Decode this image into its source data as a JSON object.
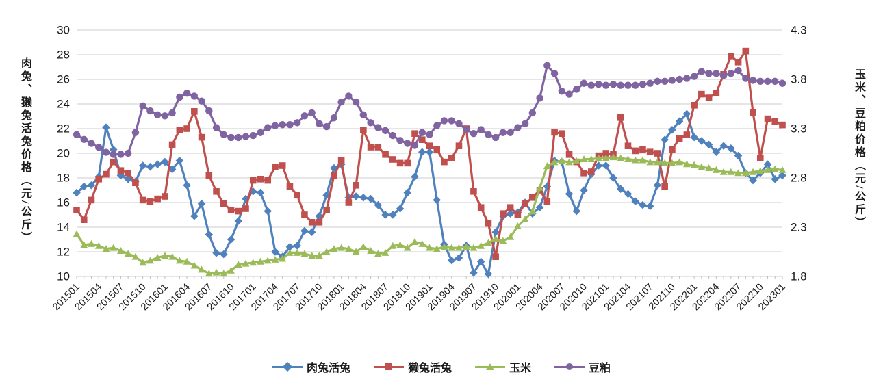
{
  "left_axis": {
    "title": "肉兔、獭兔活兔价格（元/公斤）",
    "min": 10,
    "max": 30,
    "step": 2,
    "tick_labels": [
      "10",
      "12",
      "14",
      "16",
      "18",
      "20",
      "22",
      "24",
      "26",
      "28",
      "30"
    ]
  },
  "right_axis": {
    "title": "玉米、豆粕价格（元/公斤）",
    "min": 1.8,
    "max": 4.3,
    "step": 0.5,
    "tick_labels": [
      "1.8",
      "2.3",
      "2.8",
      "3.3",
      "3.8",
      "4.3"
    ]
  },
  "colors": {
    "rabbit_meat": "#4F81BD",
    "rex_rabbit": "#C0504D",
    "corn": "#9BBB59",
    "soybean_meal": "#8064A2",
    "gridline": "#D6D6D6",
    "axis_line": "#BFBFBF",
    "text": "#1A1A1A"
  },
  "chart_data": {
    "type": "line",
    "title": "",
    "grid": true,
    "legend_position": "bottom",
    "x_tick_every": 3,
    "x": [
      "201501",
      "201502",
      "201503",
      "201504",
      "201505",
      "201506",
      "201507",
      "201508",
      "201509",
      "201510",
      "201511",
      "201512",
      "201601",
      "201602",
      "201603",
      "201604",
      "201605",
      "201606",
      "201607",
      "201608",
      "201609",
      "201610",
      "201611",
      "201612",
      "201701",
      "201702",
      "201703",
      "201704",
      "201705",
      "201706",
      "201707",
      "201708",
      "201709",
      "201710",
      "201711",
      "201712",
      "201801",
      "201802",
      "201803",
      "201804",
      "201805",
      "201806",
      "201807",
      "201808",
      "201809",
      "201810",
      "201811",
      "201812",
      "201901",
      "201902",
      "201903",
      "201904",
      "201905",
      "201906",
      "201907",
      "201908",
      "201909",
      "201910",
      "201911",
      "201912",
      "202001",
      "202002",
      "202003",
      "202004",
      "202005",
      "202006",
      "202007",
      "202008",
      "202009",
      "202010",
      "202011",
      "202012",
      "202101",
      "202102",
      "202103",
      "202104",
      "202105",
      "202106",
      "202107",
      "202108",
      "202109",
      "202110",
      "202111",
      "202112",
      "202201",
      "202202",
      "202203",
      "202204",
      "202205",
      "202206",
      "202207",
      "202208",
      "202209",
      "202210",
      "202211",
      "202212",
      "202301"
    ],
    "series": [
      {
        "name": "肉兔活兔",
        "axis": "left",
        "marker": "diamond",
        "color": "#4F81BD",
        "values": [
          16.8,
          17.3,
          17.4,
          18.1,
          22.1,
          20.3,
          18.2,
          17.9,
          17.7,
          19.0,
          18.9,
          19.1,
          19.3,
          18.7,
          19.4,
          17.4,
          14.9,
          15.9,
          13.4,
          11.9,
          11.8,
          13.0,
          14.5,
          16.3,
          16.9,
          16.8,
          15.3,
          12.0,
          11.6,
          12.4,
          12.5,
          13.7,
          13.6,
          14.9,
          16.6,
          18.8,
          19.1,
          16.4,
          16.5,
          16.4,
          16.3,
          15.8,
          15.0,
          15.0,
          15.5,
          16.8,
          18.1,
          20.1,
          20.1,
          16.2,
          12.6,
          11.3,
          11.5,
          12.5,
          10.3,
          11.2,
          10.2,
          13.6,
          14.9,
          15.1,
          15.2,
          16.0,
          15.1,
          15.6,
          17.3,
          19.4,
          19.3,
          16.7,
          15.3,
          17.0,
          18.3,
          19.0,
          19.0,
          18.0,
          17.1,
          16.7,
          16.1,
          15.8,
          15.7,
          17.4,
          21.1,
          21.9,
          22.6,
          23.2,
          21.3,
          21.0,
          20.7,
          20.1,
          20.6,
          20.4,
          19.8,
          18.4,
          17.8,
          18.4,
          19.1,
          17.9,
          18.2
        ]
      },
      {
        "name": "獭兔活兔",
        "axis": "left",
        "marker": "square",
        "color": "#C0504D",
        "values": [
          15.4,
          14.6,
          16.2,
          17.9,
          18.3,
          19.3,
          18.6,
          18.4,
          17.6,
          16.2,
          16.1,
          16.3,
          16.5,
          20.7,
          21.9,
          22.0,
          23.4,
          21.3,
          18.2,
          16.9,
          15.9,
          15.4,
          15.3,
          15.5,
          17.8,
          17.9,
          17.8,
          18.9,
          19.0,
          17.3,
          16.6,
          15.0,
          14.4,
          14.4,
          15.4,
          18.2,
          19.4,
          16.0,
          17.4,
          21.9,
          20.5,
          20.5,
          19.9,
          19.5,
          19.2,
          19.2,
          21.6,
          21.1,
          20.6,
          20.3,
          19.3,
          19.6,
          20.6,
          22.0,
          16.9,
          15.6,
          14.3,
          11.6,
          15.1,
          15.6,
          15.0,
          15.9,
          16.4,
          17.0,
          16.1,
          21.7,
          21.6,
          19.9,
          19.3,
          18.4,
          18.5,
          19.8,
          20.0,
          19.9,
          22.9,
          20.6,
          20.2,
          20.3,
          20.1,
          20.0,
          17.3,
          20.3,
          21.2,
          21.5,
          23.9,
          24.8,
          24.5,
          24.9,
          26.4,
          27.9,
          27.4,
          28.3,
          23.3,
          19.6,
          22.8,
          22.6,
          22.3
        ]
      },
      {
        "name": "玉米",
        "axis": "right",
        "marker": "triangle",
        "color": "#9BBB59",
        "values": [
          2.23,
          2.12,
          2.13,
          2.11,
          2.08,
          2.09,
          2.06,
          2.03,
          2.0,
          1.94,
          1.96,
          1.99,
          2.01,
          2.0,
          1.96,
          1.95,
          1.91,
          1.87,
          1.83,
          1.84,
          1.83,
          1.86,
          1.92,
          1.93,
          1.94,
          1.95,
          1.96,
          1.97,
          1.98,
          2.04,
          2.04,
          2.03,
          2.01,
          2.01,
          2.05,
          2.08,
          2.09,
          2.08,
          2.05,
          2.1,
          2.06,
          2.03,
          2.04,
          2.11,
          2.12,
          2.09,
          2.15,
          2.13,
          2.09,
          2.08,
          2.1,
          2.09,
          2.09,
          2.1,
          2.09,
          2.11,
          2.14,
          2.18,
          2.16,
          2.2,
          2.31,
          2.38,
          2.46,
          2.7,
          2.92,
          2.96,
          2.97,
          2.96,
          2.97,
          2.99,
          2.99,
          3.0,
          3.0,
          3.01,
          3.0,
          2.99,
          2.98,
          2.98,
          2.96,
          2.96,
          2.95,
          2.95,
          2.96,
          2.94,
          2.93,
          2.91,
          2.9,
          2.88,
          2.86,
          2.86,
          2.85,
          2.85,
          2.86,
          2.87,
          2.88,
          2.89,
          2.88
        ]
      },
      {
        "name": "豆粕",
        "axis": "right",
        "marker": "circle",
        "color": "#8064A2",
        "values": [
          3.24,
          3.19,
          3.15,
          3.11,
          3.06,
          3.04,
          3.04,
          3.05,
          3.26,
          3.53,
          3.48,
          3.44,
          3.43,
          3.46,
          3.62,
          3.66,
          3.63,
          3.58,
          3.48,
          3.31,
          3.24,
          3.21,
          3.21,
          3.22,
          3.23,
          3.26,
          3.31,
          3.33,
          3.34,
          3.34,
          3.36,
          3.43,
          3.46,
          3.35,
          3.32,
          3.41,
          3.57,
          3.63,
          3.57,
          3.44,
          3.36,
          3.31,
          3.28,
          3.23,
          3.18,
          3.15,
          3.13,
          3.26,
          3.24,
          3.33,
          3.38,
          3.38,
          3.35,
          3.29,
          3.25,
          3.29,
          3.24,
          3.21,
          3.26,
          3.26,
          3.31,
          3.35,
          3.46,
          3.61,
          3.94,
          3.86,
          3.68,
          3.65,
          3.7,
          3.76,
          3.74,
          3.75,
          3.74,
          3.75,
          3.74,
          3.74,
          3.74,
          3.75,
          3.76,
          3.78,
          3.78,
          3.79,
          3.8,
          3.81,
          3.83,
          3.88,
          3.86,
          3.86,
          3.84,
          3.86,
          3.89,
          3.81,
          3.79,
          3.78,
          3.78,
          3.78,
          3.76
        ]
      }
    ]
  }
}
